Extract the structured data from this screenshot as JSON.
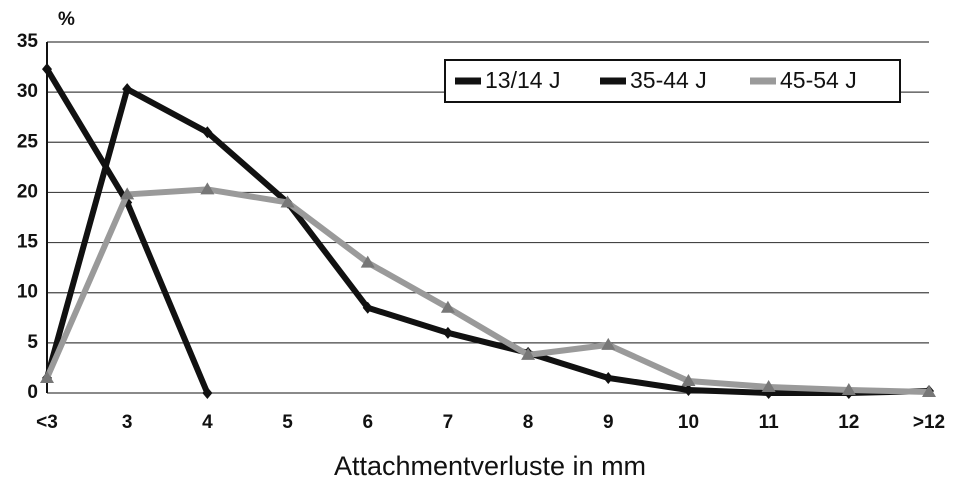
{
  "chart_data": {
    "type": "line",
    "y_unit": "%",
    "x_label": "Attachmentverluste in mm",
    "categories": [
      "<3",
      "3",
      "4",
      "5",
      "6",
      "7",
      "8",
      "9",
      "10",
      "11",
      "12",
      ">12"
    ],
    "series": [
      {
        "name": "13/14 J",
        "color": "#111111",
        "values": [
          32.3,
          19,
          0,
          null,
          null,
          null,
          null,
          null,
          null,
          null,
          null,
          null
        ]
      },
      {
        "name": "35-44 J",
        "color": "#111111",
        "values": [
          1.5,
          30.3,
          26,
          19,
          8.5,
          6,
          4,
          1.5,
          0.3,
          0,
          0,
          0.2
        ]
      },
      {
        "name": "45-54 J",
        "color": "#9a9a9a",
        "values": [
          1.5,
          19.8,
          20.3,
          19,
          13,
          8.5,
          3.8,
          4.8,
          1.2,
          0.6,
          0.3,
          0.1
        ]
      }
    ],
    "ylim": [
      0,
      35
    ],
    "yticks": [
      0,
      5,
      10,
      15,
      20,
      25,
      30,
      35
    ],
    "grid": true,
    "legend": "upper right"
  }
}
